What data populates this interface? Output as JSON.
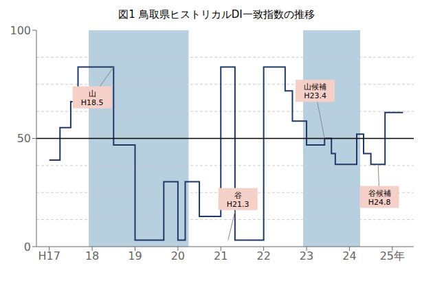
{
  "chart_data": {
    "type": "line",
    "title": "図1 鳥取県ヒストリカルDI一致指数の推移",
    "x": [
      17.0,
      17.0,
      17.25,
      17.25,
      17.5,
      17.5,
      17.67,
      17.67,
      17.83,
      17.83,
      18.0,
      18.0,
      18.5,
      18.5,
      18.83,
      18.83,
      19.0,
      19.0,
      19.5,
      19.5,
      19.67,
      19.67,
      19.83,
      19.83,
      20.0,
      20.0,
      20.17,
      20.17,
      20.5,
      20.5,
      20.83,
      20.83,
      21.0,
      21.0,
      21.17,
      21.17,
      21.33,
      21.33,
      21.67,
      21.67,
      22.0,
      22.0,
      22.33,
      22.33,
      22.5,
      22.5,
      22.67,
      22.67,
      22.83,
      22.83,
      23.0,
      23.0,
      23.33,
      23.33,
      23.42,
      23.42,
      23.58,
      23.58,
      23.67,
      23.67,
      23.83,
      23.83,
      24.0,
      24.0,
      24.17,
      24.17,
      24.33,
      24.33,
      24.5,
      24.5,
      24.67,
      24.67,
      24.83,
      24.83,
      25.0,
      25.0,
      25.25
    ],
    "values": [
      40,
      40,
      40,
      55,
      55,
      67,
      67,
      83,
      83,
      83,
      83,
      83,
      83,
      47,
      47,
      47,
      47,
      3,
      3,
      3,
      3,
      30,
      30,
      30,
      30,
      3,
      3,
      30,
      30,
      14,
      14,
      14,
      14,
      83,
      83,
      83,
      83,
      3,
      3,
      3,
      3,
      83,
      83,
      83,
      83,
      72,
      72,
      58,
      58,
      58,
      58,
      47,
      47,
      47,
      47,
      50,
      50,
      43,
      43,
      38,
      38,
      38,
      38,
      38,
      38,
      52,
      52,
      43,
      43,
      38,
      38,
      38,
      38,
      62,
      62,
      62,
      62
    ],
    "color": "#1f3864",
    "xlim": [
      16.7,
      25.5
    ],
    "ylim": [
      0,
      100
    ],
    "xticks": [
      {
        "value": 17,
        "label": "H17"
      },
      18,
      19,
      20,
      21,
      22,
      23,
      24,
      {
        "value": 25,
        "label": "25年"
      }
    ],
    "yticks": [
      0,
      50,
      100
    ],
    "grid_lines": [
      12.5,
      25,
      37.5,
      62.5,
      75,
      87.5
    ],
    "reference_lines": [
      {
        "y": 50,
        "color": "#000000"
      }
    ],
    "shaded_regions": [
      [
        17.92,
        20.25
      ],
      [
        22.92,
        24.25
      ]
    ],
    "shaded_color": "#b8cfe0",
    "annotations": [
      {
        "text": "山\nH18.5",
        "x": 18.5,
        "y": 83,
        "text_x": 18.0,
        "text_y": 69,
        "color": "#f5d0c8"
      },
      {
        "text": "谷\nH21.3",
        "x": 21.17,
        "y": 3,
        "text_x": 21.4,
        "text_y": 22,
        "color": "#f5d0c8"
      },
      {
        "text": "山候補\nH23.4",
        "x": 23.42,
        "y": 50,
        "text_x": 23.2,
        "text_y": 72,
        "color": "#f5d0c8"
      },
      {
        "text": "谷候補\nH24.8",
        "x": 24.67,
        "y": 38,
        "text_x": 24.7,
        "text_y": 23,
        "color": "#f5d0c8"
      }
    ]
  }
}
